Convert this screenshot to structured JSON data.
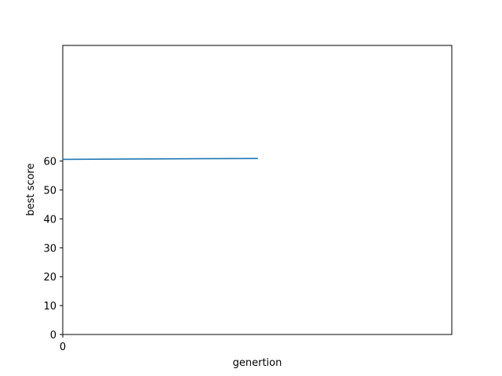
{
  "chart_data": {
    "type": "line",
    "title": "",
    "xlabel": "genertion",
    "ylabel": "best score",
    "xlim": [
      0,
      2
    ],
    "ylim": [
      0,
      100
    ],
    "x_ticks": [
      0
    ],
    "x_tick_labels": [
      "0"
    ],
    "y_ticks": [
      0,
      10,
      20,
      30,
      40,
      50,
      60
    ],
    "y_tick_labels": [
      "0",
      "10",
      "20",
      "30",
      "40",
      "50",
      "60"
    ],
    "grid": false,
    "legend": "none",
    "series": [
      {
        "color": "#1f77b4",
        "x": [
          0,
          1
        ],
        "y": [
          60.6,
          60.9
        ]
      }
    ]
  }
}
